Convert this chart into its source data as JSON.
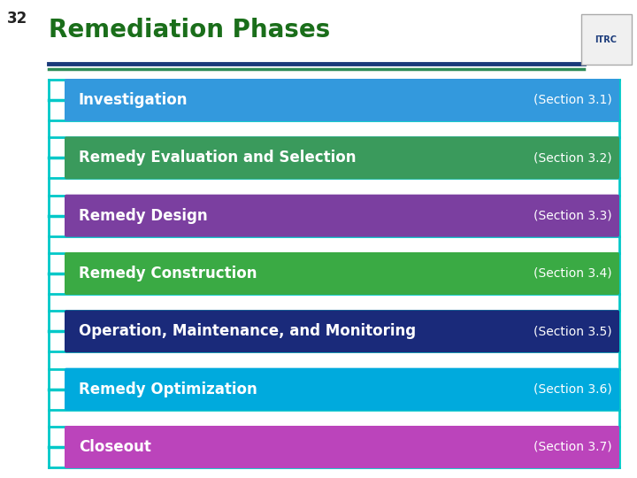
{
  "title": "Remediation Phases",
  "slide_number": "32",
  "background_color": "#ffffff",
  "title_color": "#1a6e1a",
  "separator_line1_color": "#1a3a7a",
  "separator_line2_color": "#2e8b57",
  "rows": [
    {
      "label": "Investigation",
      "section": "(Section 3.1)",
      "bg": "#3399DD",
      "border": "#00C8C8"
    },
    {
      "label": "Remedy Evaluation and Selection",
      "section": "(Section 3.2)",
      "bg": "#3a9a5c",
      "border": "#00C8C8"
    },
    {
      "label": "Remedy Design",
      "section": "(Section 3.3)",
      "bg": "#7B3FA0",
      "border": "#00C8C8"
    },
    {
      "label": "Remedy Construction",
      "section": "(Section 3.4)",
      "bg": "#3aaa44",
      "border": "#00C8C8"
    },
    {
      "label": "Operation, Maintenance, and Monitoring",
      "section": "(Section 3.5)",
      "bg": "#1a2a7a",
      "border": "#00C8C8"
    },
    {
      "label": "Remedy Optimization",
      "section": "(Section 3.6)",
      "bg": "#00AADD",
      "border": "#00C8C8"
    },
    {
      "label": "Closeout",
      "section": "(Section 3.7)",
      "bg": "#BB44BB",
      "border": "#00C8C8"
    }
  ],
  "row_text_color": "#ffffff",
  "row_label_fontsize": 12,
  "row_section_fontsize": 10,
  "title_fontsize": 20,
  "slide_num_fontsize": 12,
  "teal_color": "#00C8C8",
  "teal_linewidth": 2.0
}
